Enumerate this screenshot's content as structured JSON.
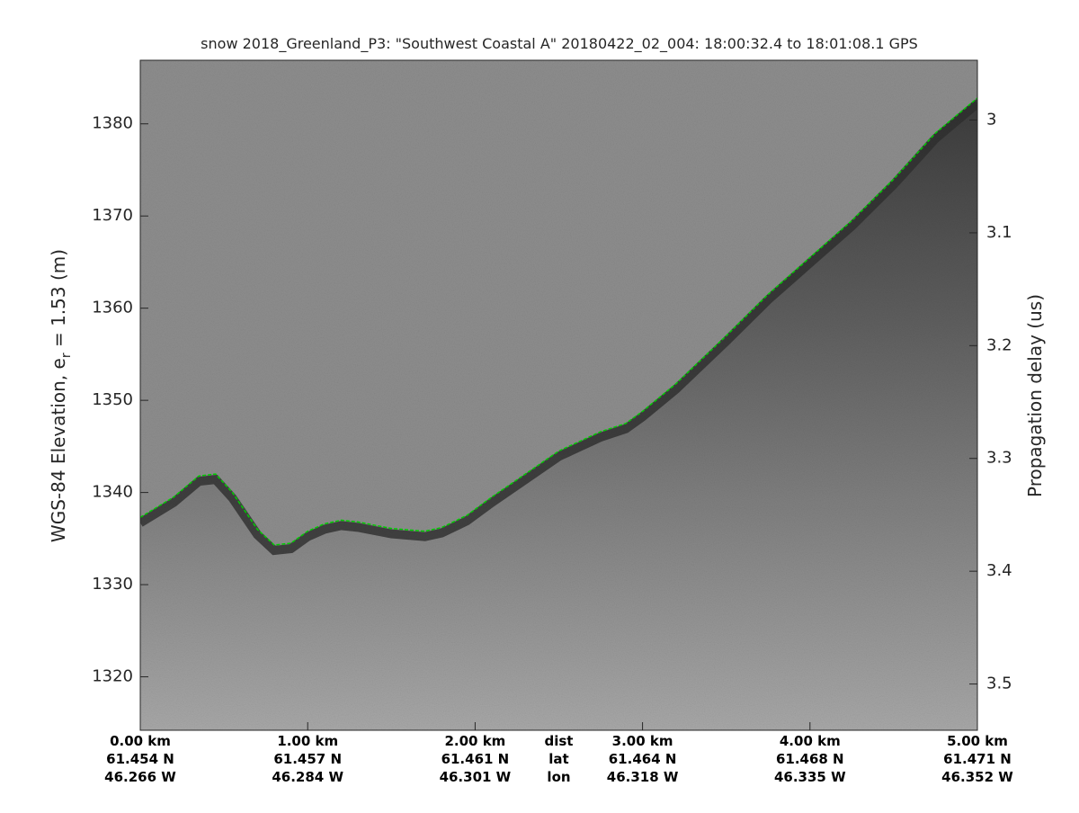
{
  "chart_data": {
    "type": "echogram",
    "title": "snow 2018_Greenland_P3: \"Southwest Coastal A\"  20180422_02_004: 18:00:32.4 to 18:01:08.1 GPS",
    "y_label": [
      "WGS-84 Elevation, e",
      "r",
      " = 1.53 (m)"
    ],
    "y2_label": "Propagation delay (us)",
    "xlim": [
      0,
      5
    ],
    "xticks": [
      {
        "value": 0,
        "label": "0.00 km"
      },
      {
        "value": 1,
        "label": "1.00 km"
      },
      {
        "value": 2,
        "label": "2.00 km"
      },
      {
        "value": 3,
        "label": "3.00 km"
      },
      {
        "value": 4,
        "label": "4.00 km"
      },
      {
        "value": 5,
        "label": "5.00 km"
      }
    ],
    "lat_labels": [
      "61.454 N",
      "61.457 N",
      "61.461 N",
      "61.464 N",
      "61.468 N",
      "61.471 N"
    ],
    "lon_labels": [
      "46.266 W",
      "46.284 W",
      "46.301 W",
      "46.318 W",
      "46.335 W",
      "46.352 W"
    ],
    "row_labels": [
      "dist",
      "lat",
      "lon"
    ],
    "ylim": [
      1314.2,
      1386.9
    ],
    "yticks": [
      1320,
      1330,
      1340,
      1350,
      1360,
      1370,
      1380
    ],
    "y2lim": [
      3.541,
      2.947
    ],
    "y2ticks": [
      3,
      3.1,
      3.2,
      3.3,
      3.4,
      3.5
    ],
    "x": [
      0,
      0.2,
      0.35,
      0.45,
      0.55,
      0.7,
      0.8,
      0.9,
      1.0,
      1.1,
      1.2,
      1.3,
      1.5,
      1.7,
      1.8,
      1.95,
      2.1,
      2.3,
      2.5,
      2.75,
      2.9,
      3.0,
      3.2,
      3.5,
      3.75,
      4.0,
      4.25,
      4.5,
      4.75,
      5.0
    ],
    "series": [
      {
        "color": "#00cc00",
        "values": [
          1337.3,
          1339.5,
          1341.8,
          1342,
          1340,
          1336,
          1334.3,
          1334.5,
          1335.8,
          1336.6,
          1337,
          1336.8,
          1336.1,
          1335.8,
          1336.2,
          1337.5,
          1339.5,
          1342,
          1344.5,
          1346.6,
          1347.5,
          1348.8,
          1351.8,
          1357,
          1361.5,
          1365.5,
          1369.5,
          1374,
          1379,
          1382.8
        ]
      }
    ]
  }
}
